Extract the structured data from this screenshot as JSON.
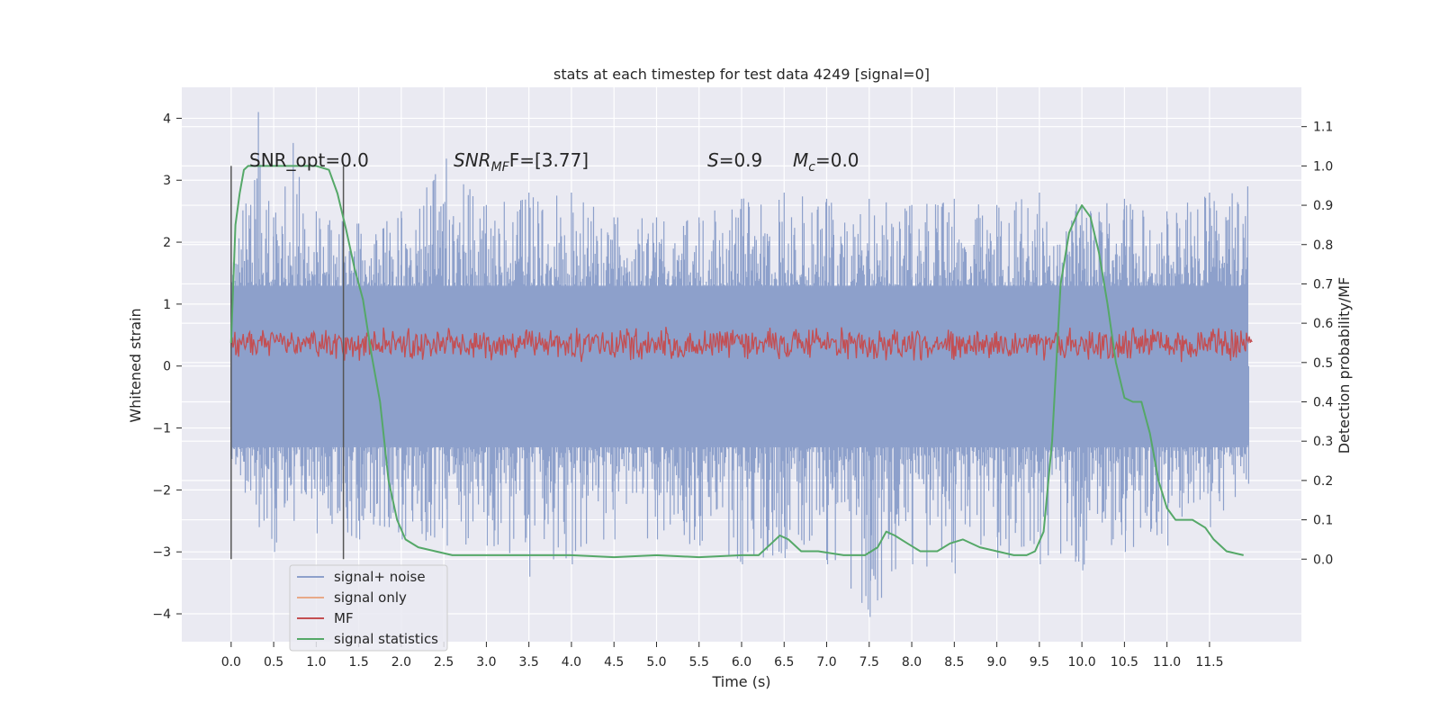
{
  "chart_data": {
    "type": "line",
    "title": "stats at each timestep for test data 4249 [signal=0]",
    "xlabel": "Time (s)",
    "ylabel": "Whitened strain",
    "ylabel_right": "Detection probability/MF",
    "xlim": [
      -0.58,
      12.58
    ],
    "ylim": [
      -4.45,
      4.5
    ],
    "ylim_right": [
      -0.21,
      1.2
    ],
    "x_ticks": [
      "0.0",
      "0.5",
      "1.0",
      "1.5",
      "2.0",
      "2.5",
      "3.0",
      "3.5",
      "4.0",
      "4.5",
      "5.0",
      "5.5",
      "6.0",
      "6.5",
      "7.0",
      "7.5",
      "8.0",
      "8.5",
      "9.0",
      "9.5",
      "10.0",
      "10.5",
      "11.0",
      "11.5"
    ],
    "y_ticks": [
      "−4",
      "−3",
      "−2",
      "−1",
      "0",
      "1",
      "2",
      "3",
      "4"
    ],
    "y_ticks_right": [
      "0.0",
      "0.1",
      "0.2",
      "0.3",
      "0.4",
      "0.5",
      "0.6",
      "0.7",
      "0.8",
      "0.9",
      "1.0",
      "1.1"
    ],
    "grid": true,
    "legend_position": "lower-left",
    "annotations": {
      "snr_opt": "SNR_opt=0.0",
      "snr_mf_main": "SNR",
      "snr_mf_sub": "MF",
      "snr_mf_value": "F=[3.77]",
      "s_label": "S",
      "s_value": "=0.9",
      "mc_label": "M",
      "mc_sub": "c",
      "mc_value": "=0.0"
    },
    "vlines_x": [
      0.0,
      1.32
    ],
    "series": [
      {
        "name": "signal+ noise",
        "color": "#8da0cb",
        "description_band": {
          "x_range": [
            0.0,
            12.0
          ],
          "typical_low": -1.6,
          "typical_high": 1.8
        },
        "x": [
          0.0,
          0.32,
          0.5,
          0.73,
          1.0,
          1.5,
          2.0,
          2.53,
          3.0,
          3.5,
          4.0,
          4.5,
          5.0,
          5.5,
          6.0,
          6.5,
          7.0,
          7.5,
          8.0,
          8.5,
          9.0,
          9.5,
          10.0,
          10.5,
          11.0,
          11.5,
          11.95
        ],
        "max": [
          1.6,
          4.1,
          2.4,
          3.6,
          2.5,
          2.3,
          2.5,
          3.35,
          2.6,
          2.8,
          2.8,
          2.4,
          2.4,
          2.4,
          2.7,
          2.8,
          2.7,
          2.7,
          2.6,
          2.7,
          2.6,
          2.8,
          2.6,
          2.7,
          2.5,
          2.8,
          2.9
        ],
        "min": [
          -1.5,
          -2.6,
          -3.0,
          -2.5,
          -2.7,
          -2.8,
          -2.8,
          -2.9,
          -2.9,
          -3.4,
          -3.2,
          -2.8,
          -2.8,
          -2.9,
          -3.2,
          -3.1,
          -3.2,
          -4.05,
          -3.2,
          -3.35,
          -3.1,
          -3.2,
          -3.3,
          -3.0,
          -2.9,
          -2.6,
          -1.9
        ]
      },
      {
        "name": "signal only",
        "color": "#e8a988",
        "x": [],
        "y": []
      },
      {
        "name": "MF",
        "color": "#c44e52",
        "description_band": {
          "x_range": [
            0.0,
            12.0
          ],
          "typical_low": 0.05,
          "typical_high": 0.65
        },
        "x": [
          0.0,
          12.0
        ],
        "y": [
          0.35,
          0.35
        ]
      },
      {
        "name": "signal statistics",
        "color": "#55a868",
        "axis": "right",
        "x": [
          0.0,
          0.05,
          0.1,
          0.15,
          0.2,
          0.3,
          0.5,
          0.8,
          1.0,
          1.15,
          1.25,
          1.35,
          1.45,
          1.55,
          1.65,
          1.75,
          1.85,
          1.95,
          2.05,
          2.2,
          2.4,
          2.6,
          3.0,
          3.5,
          4.0,
          4.5,
          5.0,
          5.5,
          6.0,
          6.2,
          6.35,
          6.45,
          6.55,
          6.7,
          6.9,
          7.2,
          7.45,
          7.6,
          7.7,
          7.8,
          7.95,
          8.1,
          8.3,
          8.45,
          8.6,
          8.8,
          9.0,
          9.2,
          9.35,
          9.45,
          9.55,
          9.65,
          9.75,
          9.85,
          9.95,
          10.0,
          10.1,
          10.2,
          10.3,
          10.4,
          10.5,
          10.6,
          10.7,
          10.8,
          10.9,
          11.0,
          11.1,
          11.3,
          11.45,
          11.55,
          11.7,
          11.9
        ],
        "y": [
          0.55,
          0.85,
          0.93,
          0.99,
          1.0,
          1.0,
          1.0,
          1.0,
          1.0,
          0.99,
          0.93,
          0.84,
          0.74,
          0.66,
          0.52,
          0.4,
          0.2,
          0.1,
          0.05,
          0.03,
          0.02,
          0.01,
          0.01,
          0.01,
          0.01,
          0.005,
          0.01,
          0.005,
          0.01,
          0.01,
          0.04,
          0.06,
          0.05,
          0.02,
          0.02,
          0.01,
          0.01,
          0.03,
          0.07,
          0.06,
          0.04,
          0.02,
          0.02,
          0.04,
          0.05,
          0.03,
          0.02,
          0.01,
          0.01,
          0.02,
          0.07,
          0.3,
          0.7,
          0.83,
          0.88,
          0.9,
          0.87,
          0.78,
          0.65,
          0.5,
          0.41,
          0.4,
          0.4,
          0.32,
          0.2,
          0.13,
          0.1,
          0.1,
          0.08,
          0.05,
          0.02,
          0.01
        ]
      }
    ]
  }
}
